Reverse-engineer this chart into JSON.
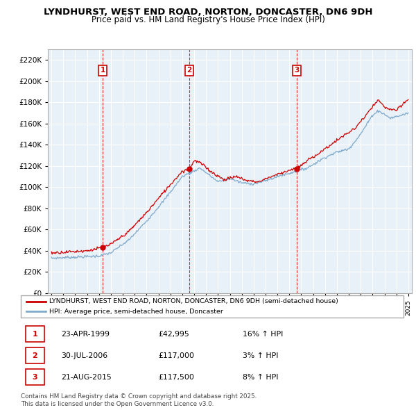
{
  "title": "LYNDHURST, WEST END ROAD, NORTON, DONCASTER, DN6 9DH",
  "subtitle": "Price paid vs. HM Land Registry's House Price Index (HPI)",
  "hpi_color": "#7faacc",
  "price_color": "#cc0000",
  "plot_bg_color": "#e8f0f8",
  "grid_color": "#ffffff",
  "ylim": [
    0,
    230000
  ],
  "yticks": [
    0,
    20000,
    40000,
    60000,
    80000,
    100000,
    120000,
    140000,
    160000,
    180000,
    200000,
    220000
  ],
  "sale_dates": [
    1999.31,
    2006.58,
    2015.64
  ],
  "sale_prices": [
    42995,
    117000,
    117500
  ],
  "sale_labels": [
    "1",
    "2",
    "3"
  ],
  "legend_entries": [
    "LYNDHURST, WEST END ROAD, NORTON, DONCASTER, DN6 9DH (semi-detached house)",
    "HPI: Average price, semi-detached house, Doncaster"
  ],
  "table_data": [
    [
      "1",
      "23-APR-1999",
      "£42,995",
      "16% ↑ HPI"
    ],
    [
      "2",
      "30-JUL-2006",
      "£117,000",
      "3% ↑ HPI"
    ],
    [
      "3",
      "21-AUG-2015",
      "£117,500",
      "8% ↑ HPI"
    ]
  ],
  "footer": "Contains HM Land Registry data © Crown copyright and database right 2025.\nThis data is licensed under the Open Government Licence v3.0.",
  "hpi_anchors_years": [
    1995.0,
    1999.0,
    2000.0,
    2001.5,
    2003.0,
    2004.5,
    2006.0,
    2007.5,
    2009.0,
    2010.0,
    2011.0,
    2012.0,
    2013.0,
    2014.0,
    2015.0,
    2016.5,
    2018.0,
    2019.0,
    2020.0,
    2021.0,
    2022.0,
    2022.5,
    2023.5,
    2024.5,
    2025.0
  ],
  "hpi_anchors_vals": [
    33000,
    35000,
    38000,
    50000,
    68000,
    88000,
    110000,
    118000,
    105000,
    108000,
    104000,
    103000,
    106000,
    110000,
    113000,
    118000,
    128000,
    133000,
    136000,
    150000,
    168000,
    172000,
    165000,
    168000,
    170000
  ],
  "price_anchors_years": [
    1995.0,
    1998.0,
    1999.31,
    2000.0,
    2001.5,
    2003.0,
    2004.5,
    2006.0,
    2006.58,
    2007.0,
    2007.5,
    2008.5,
    2009.5,
    2010.5,
    2011.5,
    2012.5,
    2013.0,
    2014.0,
    2015.0,
    2015.64,
    2016.0,
    2016.5,
    2017.5,
    2018.5,
    2019.5,
    2020.5,
    2021.0,
    2021.5,
    2022.0,
    2022.5,
    2023.0,
    2024.0,
    2025.0
  ],
  "price_anchors_vals": [
    38000,
    40000,
    42995,
    46000,
    58000,
    76000,
    96000,
    115000,
    117000,
    125000,
    123000,
    114000,
    107000,
    110000,
    106000,
    105000,
    108000,
    112000,
    116000,
    117500,
    120000,
    125000,
    132000,
    140000,
    148000,
    155000,
    162000,
    168000,
    176000,
    182000,
    175000,
    172000,
    183000
  ]
}
